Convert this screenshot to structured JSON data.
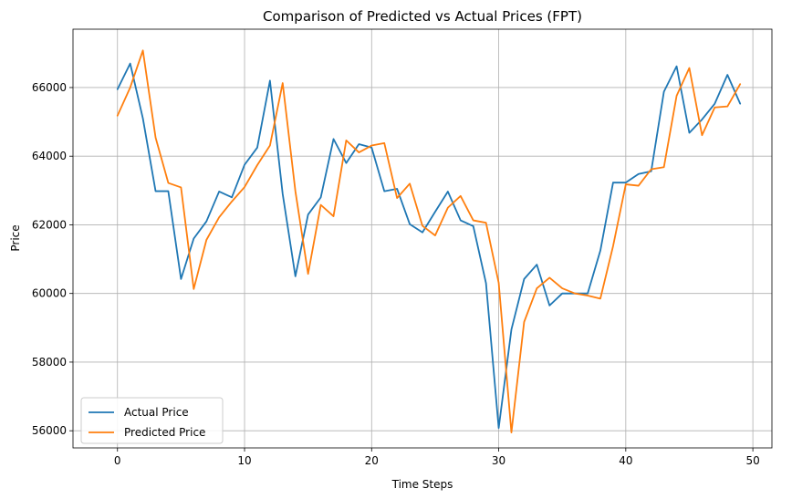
{
  "chart_data": {
    "type": "line",
    "title": "Comparison of Predicted vs Actual Prices (FPT)",
    "xlabel": "Time Steps",
    "ylabel": "Price",
    "xlim": [
      -3.5,
      51.5
    ],
    "ylim": [
      55500,
      67700
    ],
    "xticks": [
      0,
      10,
      20,
      30,
      40,
      50
    ],
    "yticks": [
      56000,
      58000,
      60000,
      62000,
      64000,
      66000
    ],
    "grid": true,
    "legend_position": "lower-left",
    "x": [
      0,
      1,
      2,
      3,
      4,
      5,
      6,
      7,
      8,
      9,
      10,
      11,
      12,
      13,
      14,
      15,
      16,
      17,
      18,
      19,
      20,
      21,
      22,
      23,
      24,
      25,
      26,
      27,
      28,
      29,
      30,
      31,
      32,
      33,
      34,
      35,
      36,
      37,
      38,
      39,
      40,
      41,
      42,
      43,
      44,
      45,
      46,
      47,
      48,
      49
    ],
    "series": [
      {
        "name": "Actual Price",
        "color": "#1f77b4",
        "values": [
          65950,
          66700,
          65100,
          62980,
          62980,
          60420,
          61600,
          62100,
          62970,
          62800,
          63750,
          64250,
          66200,
          62900,
          60500,
          62300,
          62800,
          64500,
          63800,
          64350,
          64250,
          62980,
          63050,
          62020,
          61780,
          62380,
          62970,
          62130,
          61960,
          60300,
          56080,
          58950,
          60420,
          60840,
          59650,
          60000,
          60000,
          60000,
          61250,
          63230,
          63230,
          63480,
          63560,
          65880,
          66620,
          64680,
          65070,
          65530,
          66370,
          65530
        ],
        "color_note": "blue"
      },
      {
        "name": "Predicted Price",
        "color": "#ff7f0e",
        "values": [
          65180,
          66000,
          67080,
          64540,
          63220,
          63090,
          60130,
          61560,
          62220,
          62680,
          63100,
          63740,
          64310,
          66130,
          62980,
          60570,
          62580,
          62250,
          64460,
          64110,
          64310,
          64380,
          62780,
          63200,
          61970,
          61690,
          62500,
          62840,
          62130,
          62060,
          60310,
          55950,
          59170,
          60150,
          60460,
          60150,
          60000,
          59940,
          59850,
          61380,
          63180,
          63140,
          63620,
          63680,
          65760,
          66570,
          64610,
          65420,
          65450,
          66100
        ],
        "color_note": "orange"
      }
    ]
  }
}
